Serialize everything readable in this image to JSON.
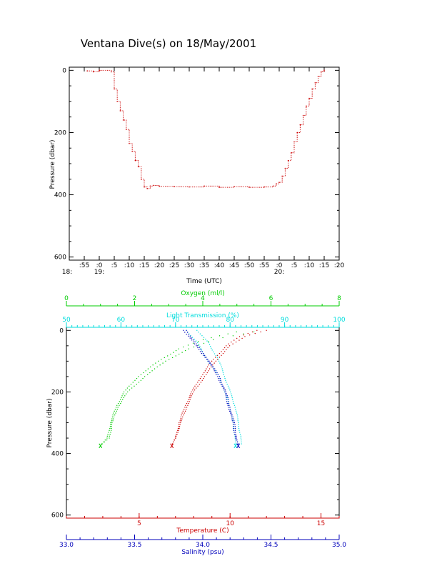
{
  "chart_data": [
    {
      "type": "line",
      "title": "Ventana Dive(s) on 18/May/2001",
      "xlabel": "Time (UTC)",
      "ylabel": "Pressure (dbar)",
      "ylim": [
        610,
        -10
      ],
      "yticks": [
        0,
        200,
        400,
        600
      ],
      "xlim_minutes_after": [
        "18:50",
        "20:20"
      ],
      "xticks": [
        {
          "label": ":55",
          "hour": ""
        },
        {
          "label": ":0",
          "hour": "19:"
        },
        {
          "label": ":5",
          "hour": ""
        },
        {
          "label": ":10",
          "hour": ""
        },
        {
          "label": ":15",
          "hour": ""
        },
        {
          "label": ":20",
          "hour": ""
        },
        {
          "label": ":25",
          "hour": ""
        },
        {
          "label": ":30",
          "hour": ""
        },
        {
          "label": ":35",
          "hour": ""
        },
        {
          "label": ":40",
          "hour": ""
        },
        {
          "label": ":45",
          "hour": ""
        },
        {
          "label": ":50",
          "hour": ""
        },
        {
          "label": ":55",
          "hour": ""
        },
        {
          "label": ":0",
          "hour": "20:"
        },
        {
          "label": ":5",
          "hour": ""
        },
        {
          "label": ":10",
          "hour": ""
        },
        {
          "label": ":15",
          "hour": ""
        },
        {
          "label": ":20",
          "hour": ""
        }
      ],
      "left_hour_label": "18:",
      "series": [
        {
          "color": "#cc0000",
          "time": [
            "18:56",
            "18:58",
            "19:00",
            "19:04",
            "19:05",
            "19:06",
            "19:07",
            "19:08",
            "19:09",
            "19:10",
            "19:11",
            "19:12",
            "19:13",
            "19:14",
            "19:15",
            "19:16",
            "19:17",
            "19:18",
            "19:20",
            "19:25",
            "19:30",
            "19:35",
            "19:40",
            "19:45",
            "19:50",
            "19:55",
            "19:58",
            "19:59",
            "20:00",
            "20:01",
            "20:02",
            "20:03",
            "20:04",
            "20:05",
            "20:06",
            "20:07",
            "20:08",
            "20:09",
            "20:10",
            "20:11",
            "20:12",
            "20:13",
            "20:14",
            "20:15"
          ],
          "pressure": [
            2,
            5,
            0,
            5,
            60,
            100,
            130,
            160,
            190,
            235,
            260,
            290,
            310,
            350,
            375,
            380,
            372,
            370,
            373,
            374,
            375,
            372,
            376,
            374,
            376,
            375,
            372,
            365,
            360,
            340,
            315,
            290,
            265,
            230,
            200,
            175,
            145,
            115,
            90,
            60,
            40,
            20,
            5,
            0
          ]
        }
      ]
    },
    {
      "type": "scatter",
      "ylabel": "Pressure (dbar)",
      "ylim": [
        610,
        -10
      ],
      "yticks": [
        0,
        200,
        400,
        600
      ],
      "axes": [
        {
          "key": "oxygen",
          "label": "Oxygen (ml/l)",
          "color": "#00cc00",
          "min": 0,
          "max": 8,
          "ticks": [
            0,
            2,
            4,
            6,
            8
          ],
          "position": "top-outer"
        },
        {
          "key": "transmission",
          "label": "Light Transmission (%)",
          "color": "#00dddd",
          "min": 50,
          "max": 100,
          "ticks": [
            50,
            60,
            70,
            80,
            90,
            100
          ],
          "position": "top-inner"
        },
        {
          "key": "temperature",
          "label": "Temperature (C)",
          "color": "#cc0000",
          "min": 1,
          "max": 16,
          "ticks": [
            5,
            10,
            15
          ],
          "position": "bottom-inner"
        },
        {
          "key": "salinity",
          "label": "Salinity (psu)",
          "color": "#0000bb",
          "min": 33.0,
          "max": 35.0,
          "ticks": [
            "33.0",
            "33.5",
            "34.0",
            "34.5",
            "35.0"
          ],
          "position": "bottom-outer"
        }
      ],
      "series": [
        {
          "axis": "oxygen",
          "color": "#00cc00",
          "pressure": [
            5,
            30,
            60,
            100,
            150,
            200,
            250,
            300,
            350,
            375
          ],
          "down": [
            5.5,
            4.3,
            3.6,
            2.9,
            2.3,
            1.8,
            1.5,
            1.35,
            1.25,
            1.0
          ],
          "up": [
            5.0,
            4.0,
            3.3,
            2.7,
            2.1,
            1.7,
            1.45,
            1.3,
            1.2,
            1.0
          ]
        },
        {
          "axis": "transmission",
          "color": "#00dddd",
          "pressure": [
            0,
            40,
            100,
            150,
            200,
            250,
            300,
            350,
            375
          ],
          "down": [
            72,
            74,
            76,
            78,
            79,
            80,
            80.5,
            81,
            81
          ],
          "up": [
            74,
            76,
            78,
            79,
            80,
            81,
            81.5,
            82,
            82
          ]
        },
        {
          "axis": "temperature",
          "color": "#cc0000",
          "pressure": [
            0,
            20,
            50,
            100,
            150,
            200,
            250,
            300,
            350,
            375
          ],
          "down": [
            12,
            10.8,
            10,
            9.2,
            8.6,
            8.0,
            7.6,
            7.3,
            7.0,
            6.8
          ],
          "up": [
            11.5,
            10.5,
            9.8,
            9.0,
            8.4,
            7.9,
            7.5,
            7.2,
            7.0,
            6.8
          ]
        },
        {
          "axis": "salinity",
          "color": "#0000bb",
          "pressure": [
            0,
            50,
            100,
            150,
            200,
            250,
            300,
            350,
            375
          ],
          "down": [
            33.88,
            33.96,
            34.05,
            34.12,
            34.17,
            34.2,
            34.23,
            34.25,
            34.26
          ],
          "up": [
            33.86,
            33.95,
            34.04,
            34.11,
            34.16,
            34.19,
            34.22,
            34.24,
            34.26
          ]
        }
      ]
    }
  ]
}
